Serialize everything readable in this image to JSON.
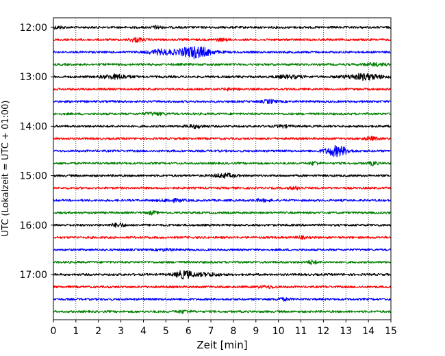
{
  "chart_data": {
    "type": "line",
    "subtype": "helicorder",
    "xlabel": "Zeit  [min]",
    "ylabel": "UTC (Lokalzeit = UTC + 01:00)",
    "xlim": [
      0,
      15
    ],
    "xticks": [
      0,
      1,
      2,
      3,
      4,
      5,
      6,
      7,
      8,
      9,
      10,
      11,
      12,
      13,
      14,
      15
    ],
    "xtick_labels": [
      "0",
      "1",
      "2",
      "3",
      "4",
      "5",
      "6",
      "7",
      "8",
      "9",
      "10",
      "11",
      "12",
      "13",
      "14",
      "15"
    ],
    "ytick_labels": [
      "12:00",
      "13:00",
      "14:00",
      "15:00",
      "16:00",
      "17:00"
    ],
    "grid": "vertical dotted at each minute",
    "legend": "none",
    "trace_colors": [
      "#000000",
      "#ff0000",
      "#0000ff",
      "#008000"
    ],
    "rows_per_hour": 4,
    "rows_total": 24,
    "traces": [
      {
        "label": "12:00",
        "events": [
          {
            "t": 4.6,
            "amp": 1.2,
            "w": 0.2
          },
          {
            "t": 0.2,
            "amp": 0.9,
            "w": 0.3
          }
        ]
      },
      {
        "label": "12:15",
        "events": [
          {
            "t": 3.7,
            "amp": 1.8,
            "w": 0.3
          },
          {
            "t": 7.5,
            "amp": 0.9,
            "w": 0.3
          }
        ]
      },
      {
        "label": "12:30",
        "events": [
          {
            "t": 6.3,
            "amp": 5.0,
            "w": 0.7
          },
          {
            "t": 4.8,
            "amp": 2.0,
            "w": 0.6
          }
        ]
      },
      {
        "label": "12:45",
        "events": [
          {
            "t": 14.3,
            "amp": 1.0,
            "w": 0.5
          }
        ]
      },
      {
        "label": "13:00",
        "events": [
          {
            "t": 2.8,
            "amp": 1.8,
            "w": 0.6
          },
          {
            "t": 13.8,
            "amp": 2.5,
            "w": 0.8
          },
          {
            "t": 10.5,
            "amp": 1.2,
            "w": 0.6
          }
        ]
      },
      {
        "label": "13:15",
        "events": [
          {
            "t": 7.9,
            "amp": 0.9,
            "w": 0.3
          }
        ]
      },
      {
        "label": "13:30",
        "events": [
          {
            "t": 9.6,
            "amp": 1.3,
            "w": 0.3
          }
        ]
      },
      {
        "label": "13:45",
        "events": [
          {
            "t": 4.5,
            "amp": 1.0,
            "w": 0.5
          }
        ]
      },
      {
        "label": "14:00",
        "events": [
          {
            "t": 6.3,
            "amp": 1.2,
            "w": 0.4
          },
          {
            "t": 10.2,
            "amp": 0.9,
            "w": 0.3
          }
        ]
      },
      {
        "label": "14:15",
        "events": [
          {
            "t": 14.1,
            "amp": 1.3,
            "w": 0.3
          }
        ]
      },
      {
        "label": "14:30",
        "events": [
          {
            "t": 12.6,
            "amp": 4.5,
            "w": 0.5
          }
        ]
      },
      {
        "label": "14:45",
        "events": [
          {
            "t": 11.6,
            "amp": 1.3,
            "w": 0.2
          },
          {
            "t": 14.2,
            "amp": 1.4,
            "w": 0.2
          }
        ]
      },
      {
        "label": "15:00",
        "events": [
          {
            "t": 7.6,
            "amp": 1.6,
            "w": 0.5
          }
        ]
      },
      {
        "label": "15:15",
        "events": [
          {
            "t": 10.8,
            "amp": 1.0,
            "w": 0.3
          }
        ]
      },
      {
        "label": "15:30",
        "events": [
          {
            "t": 5.3,
            "amp": 1.1,
            "w": 0.5
          },
          {
            "t": 9.3,
            "amp": 0.8,
            "w": 0.4
          }
        ]
      },
      {
        "label": "15:45",
        "events": [
          {
            "t": 4.4,
            "amp": 1.3,
            "w": 0.2
          }
        ]
      },
      {
        "label": "16:00",
        "events": [
          {
            "t": 2.9,
            "amp": 1.5,
            "w": 0.3
          }
        ]
      },
      {
        "label": "16:15",
        "events": [
          {
            "t": 11.0,
            "amp": 0.9,
            "w": 0.2
          }
        ]
      },
      {
        "label": "16:30",
        "events": [
          {
            "t": 5.0,
            "amp": 0.7,
            "w": 0.4
          }
        ]
      },
      {
        "label": "16:45",
        "events": [
          {
            "t": 11.5,
            "amp": 1.7,
            "w": 0.2
          }
        ]
      },
      {
        "label": "17:00",
        "events": [
          {
            "t": 5.8,
            "amp": 3.2,
            "w": 0.4
          },
          {
            "t": 6.8,
            "amp": 1.3,
            "w": 0.6
          }
        ]
      },
      {
        "label": "17:15",
        "events": [
          {
            "t": 9.5,
            "amp": 0.8,
            "w": 0.4
          }
        ]
      },
      {
        "label": "17:30",
        "events": [
          {
            "t": 10.2,
            "amp": 1.0,
            "w": 0.3
          }
        ]
      },
      {
        "label": "17:45",
        "events": [
          {
            "t": 5.8,
            "amp": 1.0,
            "w": 0.3
          }
        ]
      }
    ]
  }
}
